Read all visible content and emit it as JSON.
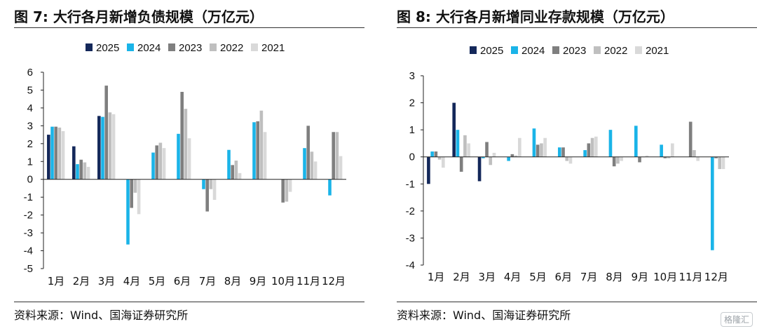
{
  "colors": {
    "2025": "#14285a",
    "2024": "#1ab4e8",
    "2023": "#7f7f7f",
    "2022": "#bfbfbf",
    "2021": "#d9d9d9"
  },
  "logo_text": "格隆汇",
  "charts": [
    {
      "figure_title": "图 7:  大行各月新增负债规模（万亿元）",
      "source": "资料来源：Wind、国海证券研究所",
      "chart_data": {
        "type": "bar",
        "title": "大行各月新增负债规模（万亿元）",
        "xlabel": "",
        "ylabel": "",
        "categories": [
          "1月",
          "2月",
          "3月",
          "4月",
          "5月",
          "6月",
          "7月",
          "8月",
          "9月",
          "10月",
          "11月",
          "12月"
        ],
        "ylim": [
          -5,
          6
        ],
        "yticks": [
          -5,
          -4,
          -3,
          -2,
          -1,
          0,
          1,
          2,
          3,
          4,
          5,
          6
        ],
        "legend_position": "top-center",
        "grid": false,
        "series": [
          {
            "name": "2025",
            "values": [
              2.5,
              1.85,
              3.55,
              null,
              null,
              null,
              null,
              null,
              null,
              null,
              null,
              null
            ]
          },
          {
            "name": "2024",
            "values": [
              2.95,
              0.85,
              3.5,
              -3.65,
              1.5,
              2.55,
              -0.55,
              1.65,
              3.2,
              null,
              1.75,
              -0.9
            ]
          },
          {
            "name": "2023",
            "values": [
              2.95,
              1.1,
              5.25,
              -1.6,
              1.9,
              4.9,
              -1.8,
              0.8,
              3.25,
              -1.3,
              3.0,
              2.65
            ]
          },
          {
            "name": "2022",
            "values": [
              2.9,
              0.95,
              3.75,
              -0.75,
              2.05,
              3.95,
              -0.55,
              1.05,
              3.85,
              -1.25,
              1.55,
              2.65
            ]
          },
          {
            "name": "2021",
            "values": [
              2.7,
              0.7,
              3.65,
              -1.95,
              1.75,
              2.3,
              -1.15,
              0.35,
              2.65,
              -0.7,
              1.0,
              1.3
            ]
          }
        ]
      }
    },
    {
      "figure_title": "图 8:  大行各月新增同业存款规模（万亿元）",
      "source": "资料来源：Wind、国海证券研究所",
      "chart_data": {
        "type": "bar",
        "title": "大行各月新增同业存款规模（万亿元）",
        "xlabel": "",
        "ylabel": "",
        "categories": [
          "1月",
          "2月",
          "3月",
          "4月",
          "5月",
          "6月",
          "7月",
          "8月",
          "9月",
          "10月",
          "11月",
          "12月"
        ],
        "ylim": [
          -4,
          3
        ],
        "yticks": [
          -4,
          -3,
          -2,
          -1,
          0,
          1,
          2,
          3
        ],
        "legend_position": "top-center",
        "grid": false,
        "series": [
          {
            "name": "2025",
            "values": [
              -1.0,
              2.0,
              -0.9,
              null,
              null,
              null,
              null,
              null,
              null,
              null,
              null,
              null
            ]
          },
          {
            "name": "2024",
            "values": [
              0.2,
              1.0,
              -0.05,
              -0.15,
              1.05,
              0.35,
              0.25,
              1.0,
              1.15,
              0.45,
              null,
              -3.45
            ]
          },
          {
            "name": "2023",
            "values": [
              0.2,
              -0.55,
              0.55,
              0.1,
              0.45,
              0.35,
              0.5,
              -0.35,
              -0.2,
              -0.05,
              1.3,
              -0.05
            ]
          },
          {
            "name": "2022",
            "values": [
              -0.1,
              0.8,
              -0.3,
              0.05,
              0.5,
              -0.15,
              0.7,
              -0.25,
              0.0,
              -0.05,
              0.25,
              -0.45
            ]
          },
          {
            "name": "2021",
            "values": [
              -0.4,
              0.5,
              0.15,
              0.7,
              0.7,
              -0.25,
              0.75,
              -0.15,
              0.05,
              0.5,
              -0.15,
              -0.45
            ]
          }
        ]
      }
    }
  ]
}
